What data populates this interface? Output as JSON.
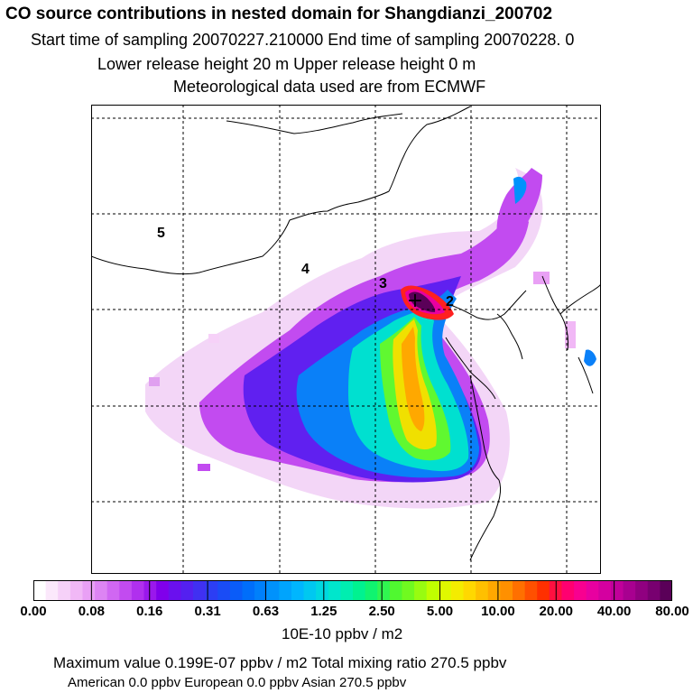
{
  "header": {
    "title": "CO  source contributions in nested domain for Shangdianzi_200702",
    "line1": "Start time of sampling 20070227.210000     End time of sampling 20070228.     0",
    "line2": "Lower release height   20 m          Upper release height    0 m",
    "line3": "Meteorological data used are from ECMWF"
  },
  "chart_data": {
    "type": "heatmap",
    "region_labels": [
      "5",
      "4",
      "3",
      "2"
    ],
    "receptor_marker": "+",
    "grid": true,
    "colorbar": {
      "tick_labels": [
        "0.00",
        "0.08",
        "0.16",
        "0.31",
        "0.63",
        "1.25",
        "2.50",
        "5.00",
        "10.00",
        "20.00",
        "40.00",
        "80.00"
      ],
      "unit": "10E-10 ppbv / m2",
      "colors": [
        "#ffffff",
        "#fbe8fb",
        "#f6d1f8",
        "#f1b8f6",
        "#e9a0f5",
        "#dd84f3",
        "#d067f2",
        "#c24bf0",
        "#b030ee",
        "#9a18ec",
        "#8000eb",
        "#6a10ee",
        "#5420f0",
        "#4030f2",
        "#2c3ef4",
        "#1a4cf6",
        "#0a5cf8",
        "#006efa",
        "#0080fb",
        "#0092fc",
        "#00a4fd",
        "#00b6fe",
        "#00c8f0",
        "#00d8e0",
        "#00e6cc",
        "#00eeb0",
        "#00f290",
        "#10f470",
        "#30f650",
        "#50f830",
        "#70fa20",
        "#98fc10",
        "#c0fe00",
        "#e0f800",
        "#f4ec00",
        "#ffd800",
        "#ffc000",
        "#ffa800",
        "#ff9000",
        "#ff7000",
        "#ff5000",
        "#ff3000",
        "#ff1040",
        "#ff0070",
        "#f80090",
        "#e800a0",
        "#d400a0",
        "#c0009a",
        "#a80090",
        "#900080",
        "#780070",
        "#5a0058"
      ]
    }
  },
  "footer": {
    "summary_line1": "Maximum value  0.199E-07 ppbv / m2      Total mixing ratio      270.5 ppbv",
    "summary_line2": "American        0.0 ppbv              European        0.0 ppbv              Asian     270.5 ppbv"
  }
}
